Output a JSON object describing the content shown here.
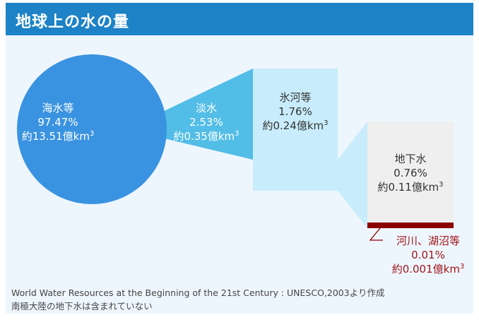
{
  "title": "地球上の水の量",
  "colors": {
    "header": "#1d82c6",
    "sea_circle": "#3a93e0",
    "freshwater_wedge": "#52bde6",
    "ice_box": "#c8ecfb",
    "ground_box": "#efefef",
    "river_bar": "#8b0000",
    "river_text": "#a0151c"
  },
  "sea": {
    "name": "海水等",
    "percent": "97.47%",
    "amount_prefix": "約13.51億km",
    "amount_exp": "3"
  },
  "freshwater": {
    "name": "淡水",
    "percent": "2.53%",
    "amount_prefix": "約0.35億km",
    "amount_exp": "3"
  },
  "ice": {
    "name": "氷河等",
    "percent": "1.76%",
    "amount_prefix": "約0.24億km",
    "amount_exp": "3"
  },
  "groundwater": {
    "name": "地下水",
    "percent": "0.76%",
    "amount_prefix": "約0.11億km",
    "amount_exp": "3"
  },
  "rivers": {
    "name": "河川、湖沼等",
    "percent": "0.01%",
    "amount_prefix": "約0.001億km",
    "amount_exp": "3"
  },
  "footer": {
    "line1": "World Water Resources at the Beginning of the 21st Century : UNESCO,2003より作成",
    "line2": "南極大陸の地下水は含まれていない"
  }
}
